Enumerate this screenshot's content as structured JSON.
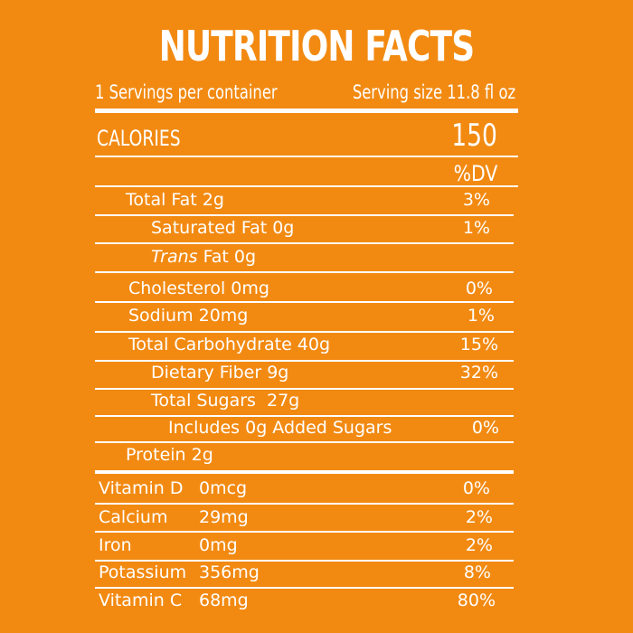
{
  "header": {
    "title": "NUTRITION FACTS",
    "servings": "1 Servings per container",
    "serving_size": "Serving size 11.8 fl oz",
    "calories_label": "CALORIES",
    "calories_value": "150",
    "dv_label": "%DV"
  },
  "nutrients": [
    {
      "label": "Total Fat 2g",
      "dv": "3%"
    },
    {
      "label": "Saturated Fat 0g",
      "dv": "1%"
    },
    {
      "label_italic": "Trans",
      "label": " Fat 0g",
      "dv": ""
    },
    {
      "label": "Cholesterol 0mg",
      "dv": "0%"
    },
    {
      "label": "Sodium 20mg",
      "dv": "1%"
    },
    {
      "label": "Total Carbohydrate 40g",
      "dv": "15%"
    },
    {
      "label": "Dietary Fiber 9g",
      "dv": "32%"
    },
    {
      "label": "Total Sugars  27g",
      "dv": ""
    },
    {
      "label": "Includes 0g Added Sugars",
      "dv": "0%"
    },
    {
      "label": "Protein 2g",
      "dv": ""
    }
  ],
  "vitamins": [
    {
      "name": "Vitamin D",
      "amount": "0mcg",
      "dv": "0%"
    },
    {
      "name": "Calcium",
      "amount": "29mg",
      "dv": "2%"
    },
    {
      "name": "Iron",
      "amount": "0mg",
      "dv": "2%"
    },
    {
      "name": "Potassium",
      "amount": "356mg",
      "dv": "8%"
    },
    {
      "name": "Vitamin C",
      "amount": "68mg",
      "dv": "80%"
    }
  ],
  "colors": {
    "background": "#F28A12",
    "text": "#FFFFFF"
  }
}
